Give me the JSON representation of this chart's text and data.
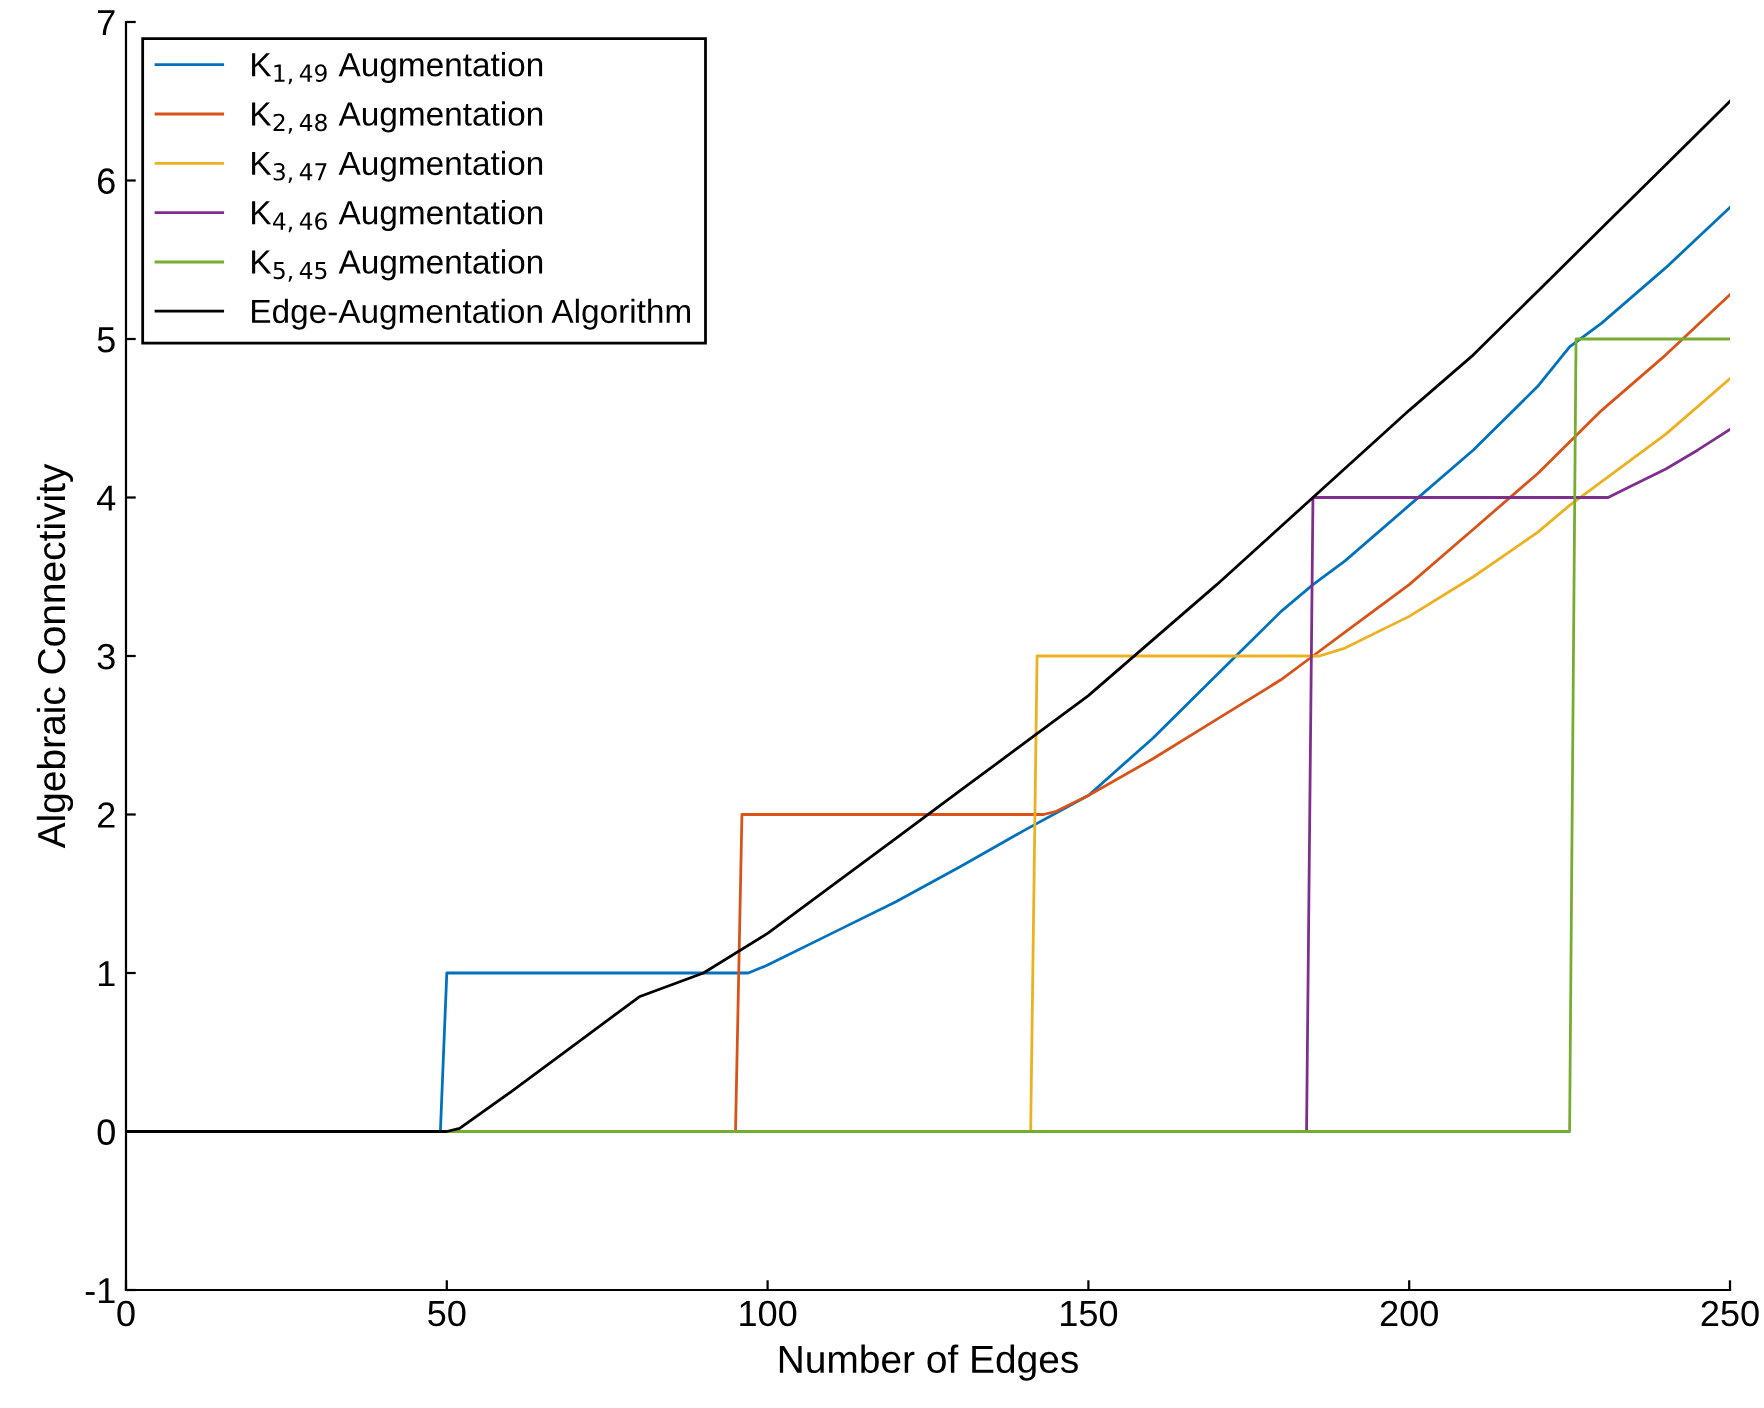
{
  "chart_data": {
    "type": "line",
    "xlabel": "Number of Edges",
    "ylabel": "Algebraic Connectivity",
    "xlim": [
      0,
      250
    ],
    "ylim": [
      -1,
      7
    ],
    "xticks": [
      0,
      50,
      100,
      150,
      200,
      250
    ],
    "yticks": [
      -1,
      0,
      1,
      2,
      3,
      4,
      5,
      6,
      7
    ],
    "grid": false,
    "legend": "top left",
    "marker": "none",
    "line_style": "solid",
    "series": [
      {
        "name": "K$_{1,49}$ Augmentation",
        "color": "#0072bd",
        "x": [
          0,
          49,
          50,
          97,
          100,
          110,
          120,
          130,
          140,
          150,
          160,
          170,
          180,
          185,
          190,
          200,
          210,
          220,
          225,
          230,
          240,
          250
        ],
        "values": [
          0,
          0,
          1,
          1,
          1.05,
          1.25,
          1.45,
          1.67,
          1.9,
          2.12,
          2.48,
          2.88,
          3.28,
          3.45,
          3.6,
          3.95,
          4.3,
          4.7,
          4.95,
          5.1,
          5.45,
          5.83
        ]
      },
      {
        "name": "K$_{2,48}$ Augmentation",
        "color": "#d95319",
        "x": [
          0,
          95,
          96,
          143,
          145,
          150,
          160,
          170,
          180,
          185,
          190,
          200,
          210,
          220,
          230,
          240,
          250
        ],
        "values": [
          0,
          0,
          2,
          2,
          2.02,
          2.12,
          2.35,
          2.6,
          2.85,
          3.0,
          3.15,
          3.45,
          3.8,
          4.15,
          4.55,
          4.9,
          5.28
        ]
      },
      {
        "name": "K$_{3,47}$ Augmentation",
        "color": "#edb120",
        "x": [
          0,
          141,
          142,
          186,
          190,
          200,
          210,
          220,
          225,
          230,
          240,
          250
        ],
        "values": [
          0,
          0,
          3,
          3,
          3.05,
          3.25,
          3.5,
          3.78,
          3.95,
          4.1,
          4.4,
          4.75
        ]
      },
      {
        "name": "K$_{4,46}$ Augmentation",
        "color": "#7e2f8e",
        "x": [
          184,
          185,
          231,
          235,
          240,
          245,
          250
        ],
        "values": [
          0,
          4,
          4,
          4.08,
          4.18,
          4.3,
          4.43
        ]
      },
      {
        "name": "K$_{5,45}$ Augmentation",
        "color": "#77ac30",
        "x": [
          0,
          225,
          226,
          250
        ],
        "values": [
          0,
          0,
          5,
          5
        ]
      },
      {
        "name": "Edge-Augmentation Algorithm",
        "color": "#000000",
        "x": [
          0,
          50,
          52,
          60,
          70,
          80,
          90,
          100,
          110,
          120,
          130,
          140,
          150,
          160,
          170,
          185,
          200,
          210,
          220,
          230,
          240,
          250
        ],
        "values": [
          0,
          0,
          0.02,
          0.25,
          0.55,
          0.85,
          1.0,
          1.25,
          1.55,
          1.85,
          2.15,
          2.45,
          2.75,
          3.1,
          3.45,
          4.0,
          4.55,
          4.9,
          5.3,
          5.7,
          6.1,
          6.5
        ]
      }
    ]
  }
}
